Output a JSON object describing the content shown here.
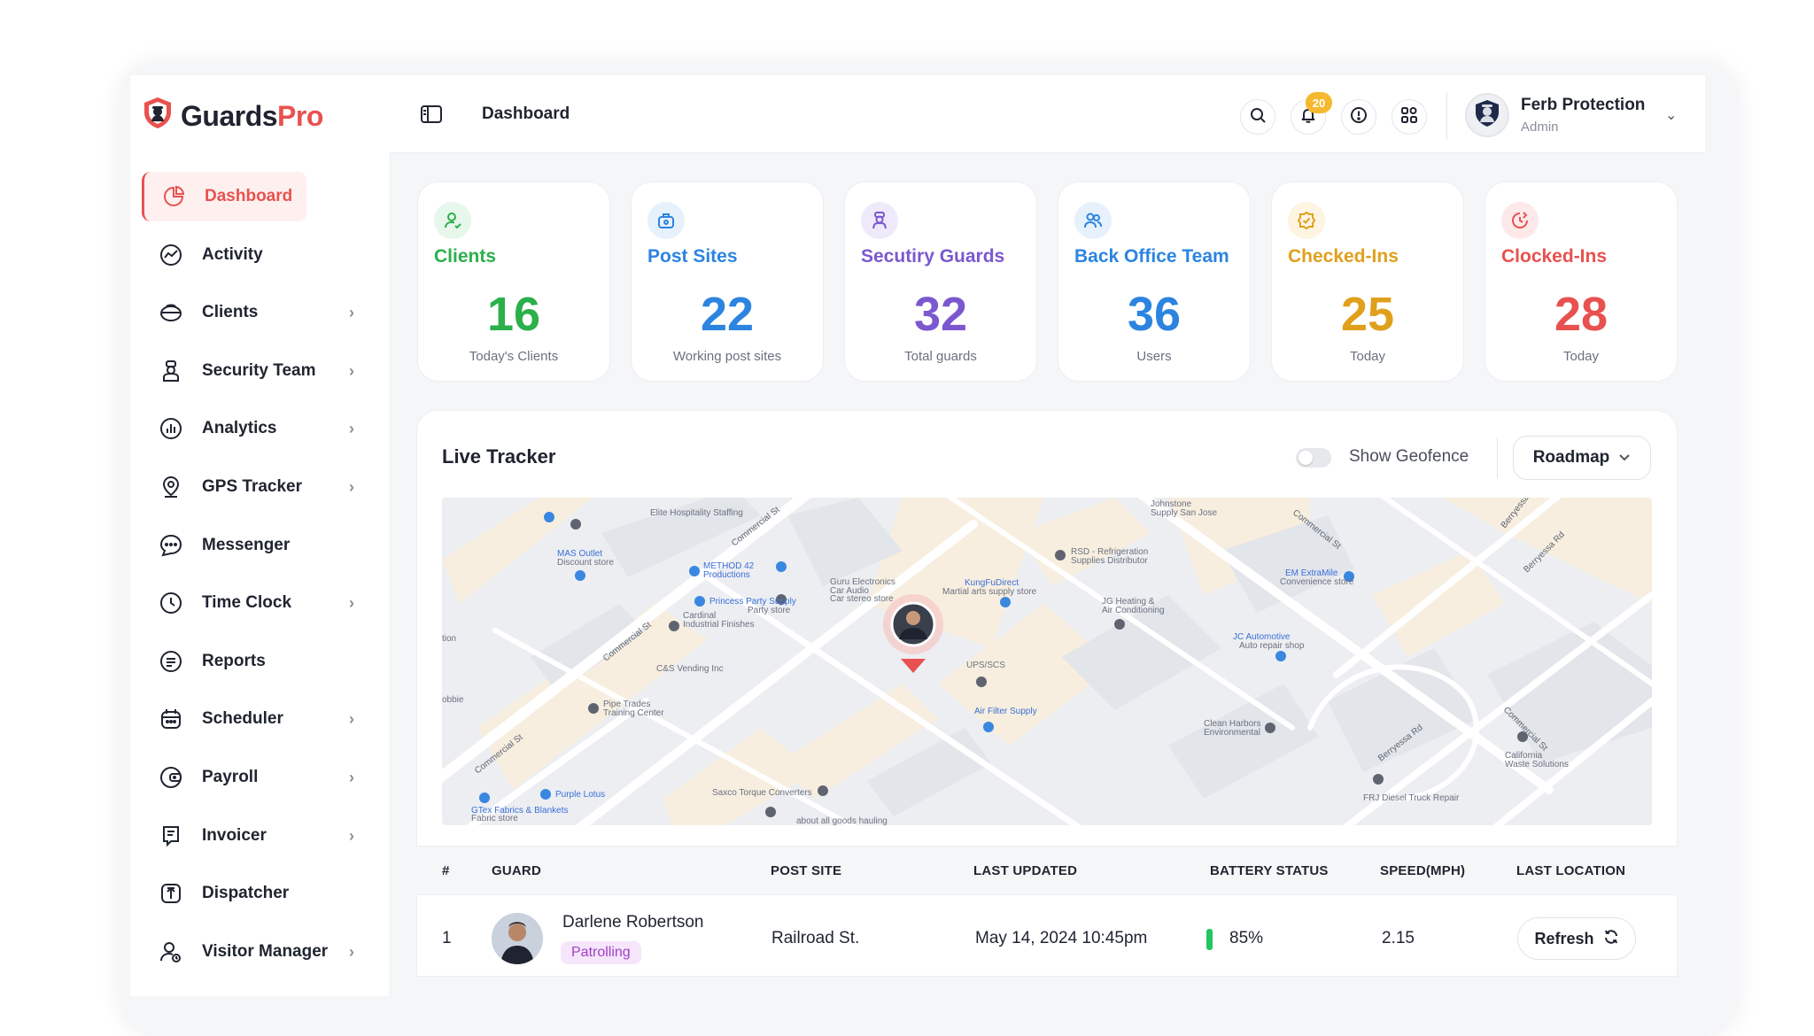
{
  "brand": {
    "name_part1": "Guards",
    "name_part2": "Pro"
  },
  "sidebar": {
    "items": [
      {
        "label": "Dashboard",
        "icon": "pie-chart-icon",
        "active": true
      },
      {
        "label": "Activity",
        "icon": "activity-icon"
      },
      {
        "label": "Clients",
        "icon": "clients-icon",
        "has_submenu": true
      },
      {
        "label": "Security Team",
        "icon": "security-team-icon",
        "has_submenu": true
      },
      {
        "label": "Analytics",
        "icon": "analytics-icon",
        "has_submenu": true
      },
      {
        "label": "GPS Tracker",
        "icon": "gps-pin-icon",
        "has_submenu": true
      },
      {
        "label": "Messenger",
        "icon": "chat-bubble-icon"
      },
      {
        "label": "Time Clock",
        "icon": "clock-icon",
        "has_submenu": true
      },
      {
        "label": "Reports",
        "icon": "document-icon"
      },
      {
        "label": "Scheduler",
        "icon": "calendar-icon",
        "has_submenu": true
      },
      {
        "label": "Payroll",
        "icon": "wallet-icon",
        "has_submenu": true
      },
      {
        "label": "Invoicer",
        "icon": "invoice-icon",
        "has_submenu": true
      },
      {
        "label": "Dispatcher",
        "icon": "dispatch-icon"
      },
      {
        "label": "Visitor Manager",
        "icon": "visitor-icon",
        "has_submenu": true
      }
    ]
  },
  "header": {
    "title": "Dashboard",
    "notification_count": "20",
    "user": {
      "name": "Ferb Protection",
      "role": "Admin"
    }
  },
  "stats": [
    {
      "title": "Clients",
      "value": "16",
      "sub": "Today's Clients",
      "color": "#2bb04a",
      "bg": "#e7f7ec",
      "icon": "user-icon"
    },
    {
      "title": "Post Sites",
      "value": "22",
      "sub": "Working post sites",
      "color": "#2c84e0",
      "bg": "#e6f1fc",
      "icon": "site-icon"
    },
    {
      "title": "Secutiry Guards",
      "value": "32",
      "sub": "Total guards",
      "color": "#7b58cf",
      "bg": "#efeafb",
      "icon": "guard-icon"
    },
    {
      "title": "Back Office Team",
      "value": "36",
      "sub": "Users",
      "color": "#2c84e0",
      "bg": "#e6f1fc",
      "icon": "team-icon"
    },
    {
      "title": "Checked-Ins",
      "value": "25",
      "sub": "Today",
      "color": "#e0a01c",
      "bg": "#fdf4e1",
      "icon": "check-badge-icon"
    },
    {
      "title": "Clocked-Ins",
      "value": "28",
      "sub": "Today",
      "color": "#e8514f",
      "bg": "#fde9e9",
      "icon": "clock-in-icon"
    }
  ],
  "tracker": {
    "title": "Live Tracker",
    "geofence_label": "Show Geofence",
    "geofence_on": false,
    "map_type": "Roadmap",
    "map_labels": {
      "streets": [
        "Commercial St",
        "Commercial St",
        "Commercial St",
        "Commercial St",
        "Berryessa Rd",
        "Berryessa Rd",
        "Berryessa Rd",
        "Commercial St",
        "Commercial St"
      ],
      "places": [
        "Elite Hospitality Staffing",
        "MAS Outlet",
        "Discount store",
        "METHOD 42 Productions",
        "Guru Electronics Car Audio",
        "Car stereo store",
        "Princess Party Supply",
        "Party store",
        "Cardinal Industrial Finishes",
        "C&S Vending Inc",
        "Pipe Trades Training Center",
        "Purple Lotus",
        "GTex Fabrics & Blankets",
        "Fabric store",
        "Saxco Torque Converters",
        "about all goods hauling",
        "Johnstone Supply San Jose",
        "RSD - Refrigeration Supplies Distributor",
        "KungFuDirect",
        "Martial arts supply store",
        "JG Heating & Air Conditioning",
        "UPS/SCS",
        "Air Filter Supply",
        "EM ExtraMile",
        "Convenience store",
        "JC Automotive",
        "Auto repair shop",
        "Clean Harbors Environmental",
        "FRJ Diesel Truck Repair",
        "California Waste Solutions",
        "tion",
        "obbie"
      ]
    }
  },
  "table": {
    "columns": [
      "#",
      "GUARD",
      "POST SITE",
      "LAST UPDATED",
      "BATTERY STATUS",
      "SPEED(MPH)",
      "LAST LOCATION"
    ],
    "rows": [
      {
        "index": "1",
        "guard": "Darlene Robertson",
        "status": "Patrolling",
        "post_site": "Railroad St.",
        "last_updated": "May 14, 2024 10:45pm",
        "battery": "85%",
        "speed": "2.15",
        "action": "Refresh"
      }
    ]
  }
}
